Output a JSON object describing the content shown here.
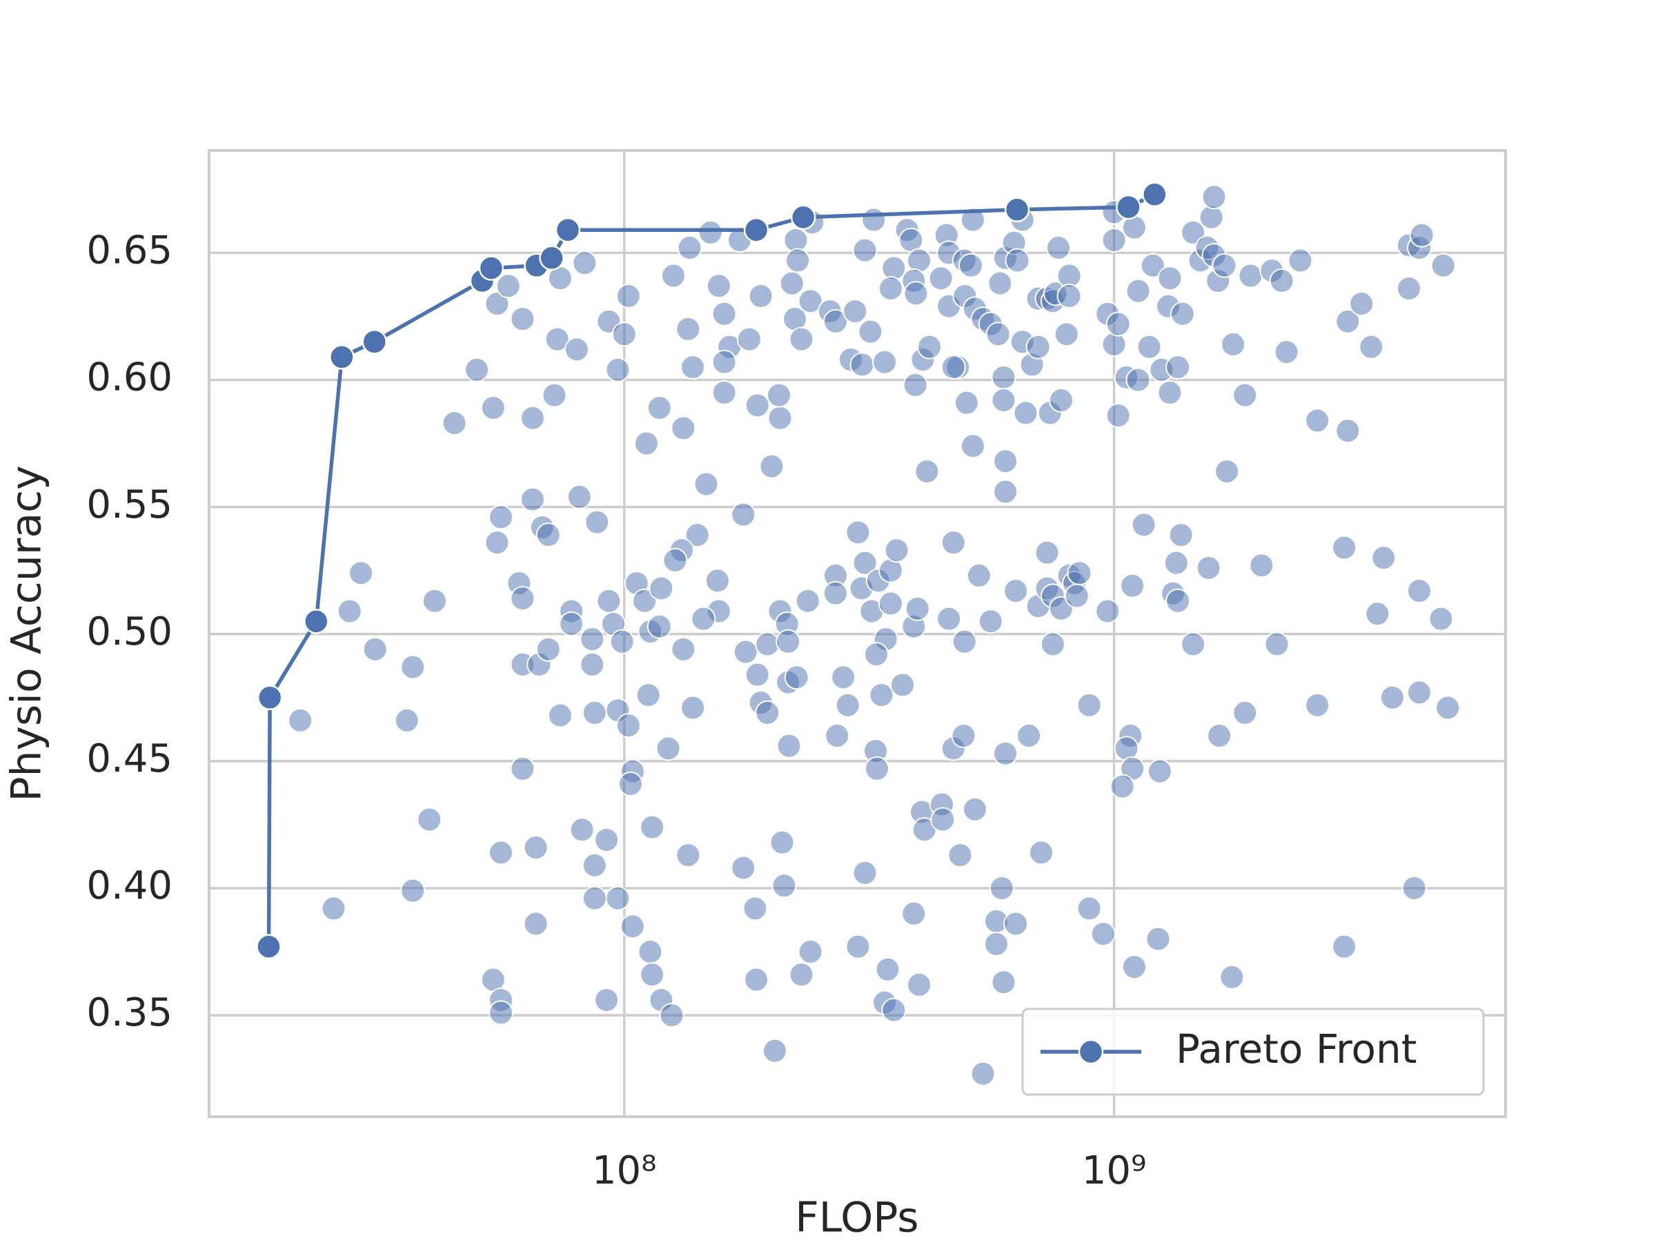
{
  "chart_data": {
    "type": "scatter",
    "x_label": "FLOPs",
    "y_label": "Physio Accuracy",
    "xscale": "log",
    "grid": true,
    "legend": "lower right",
    "xlim": [
      14200000,
      6300000000
    ],
    "ylim": [
      0.3101,
      0.6903
    ],
    "xticks": [
      {
        "value": 100000000,
        "label": "10⁸"
      },
      {
        "value": 1000000000,
        "label": "10⁹"
      }
    ],
    "yticks": [
      {
        "value": 0.35,
        "label": "0.35"
      },
      {
        "value": 0.4,
        "label": "0.40"
      },
      {
        "value": 0.45,
        "label": "0.45"
      },
      {
        "value": 0.5,
        "label": "0.50"
      },
      {
        "value": 0.55,
        "label": "0.55"
      },
      {
        "value": 0.6,
        "label": "0.60"
      },
      {
        "value": 0.65,
        "label": "0.65"
      }
    ],
    "series": [
      {
        "type": "scatter",
        "color": "#4c72b0",
        "x": [
          21800000.0,
          25500000.0,
          29000000.0,
          27500000.0,
          31000000.0,
          36000000.0,
          37000000.0,
          37000000.0,
          40000000.0,
          41000000.0,
          45000000.0,
          50000000.0,
          54000000.0,
          55000000.0,
          58000000.0,
          56000000.0,
          55000000.0,
          61000000.0,
          62000000.0,
          62000000.0,
          65000000.0,
          65000000.0,
          68000000.0,
          70000000.0,
          72000000.0,
          73000000.0,
          74000000.0,
          80000000.0,
          81000000.0,
          88000000.0,
          83000000.0,
          62000000.0,
          67000000.0,
          70000000.0,
          74000000.0,
          78000000.0,
          78000000.0,
          86000000.0,
          86000000.0,
          87000000.0,
          93000000.0,
          97000000.0,
          100000000.0,
          102000000.0,
          93000000.0,
          95000000.0,
          99000000.0,
          106000000.0,
          110000000.0,
          113000000.0,
          119000000.0,
          118000000.0,
          97000000.0,
          102000000.0,
          104000000.0,
          103000000.0,
          112000000.0,
          123000000.0,
          114000000.0,
          97000000.0,
          104000000.0,
          113000000.0,
          114000000.0,
          119000000.0,
          125000000.0,
          92000000.0,
          82000000.0,
          87000000.0,
          87000000.0,
          92000000.0,
          66000000.0,
          66000000.0,
          56000000.0,
          54000000.0,
          56000000.0,
          56000000.0,
          62000000.0,
          111000000.0,
          118000000.0,
          132000000.0,
          126000000.0,
          136000000.0,
          135000000.0,
          138000000.0,
          147000000.0,
          141000000.0,
          131000000.0,
          127000000.0,
          155000000.0,
          156000000.0,
          145000000.0,
          132000000.0,
          138000000.0,
          135000000.0,
          150000000.0,
          156000000.0,
          160000000.0,
          164000000.0,
          160000000.0,
          160000000.0,
          175000000.0,
          172000000.0,
          180000000.0,
          190000000.0,
          187000000.0,
          200000000.0,
          208000000.0,
          207000000.0,
          177000000.0,
          187000000.0,
          196000000.0,
          190000000.0,
          196000000.0,
          208000000.0,
          215000000.0,
          216000000.0,
          216000000.0,
          225000000.0,
          217000000.0,
          237000000.0,
          175000000.0,
          185000000.0,
          186000000.0,
          210000000.0,
          212000000.0,
          203000000.0,
          240000000.0,
          230000000.0,
          224000000.0,
          220000000.0,
          226000000.0,
          223000000.0,
          230000000.0,
          240000000.0,
          242000000.0,
          263000000.0,
          270000000.0,
          296000000.0,
          290000000.0,
          306000000.0,
          323000000.0,
          310000000.0,
          318000000.0,
          340000000.0,
          355000000.0,
          350000000.0,
          378000000.0,
          385000000.0,
          400000000.0,
          390000000.0,
          394000000.0,
          407000000.0,
          393000000.0,
          420000000.0,
          415000000.0,
          455000000.0,
          460000000.0,
          443000000.0,
          460000000.0,
          480000000.0,
          470000000.0,
          495000000.0,
          510000000.0,
          496000000.0,
          515000000.0,
          520000000.0,
          540000000.0,
          500000000.0,
          515000000.0,
          300000000.0,
          310000000.0,
          305000000.0,
          320000000.0,
          330000000.0,
          350000000.0,
          360000000.0,
          350000000.0,
          342000000.0,
          327000000.0,
          335000000.0,
          370000000.0,
          390000000.0,
          397000000.0,
          270000000.0,
          270000000.0,
          280000000.0,
          286000000.0,
          272000000.0,
          326000000.0,
          328000000.0,
          310000000.0,
          300000000.0,
          345000000.0,
          340000000.0,
          355000000.0,
          390000000.0,
          400000000.0,
          405000000.0,
          410000000.0,
          445000000.0,
          447000000.0,
          470000000.0,
          493000000.0,
          485000000.0,
          520000000.0,
          460000000.0,
          470000000.0,
          495000000.0,
          530000000.0,
          560000000.0,
          600000000.0,
          590000000.0,
          575000000.0,
          575000000.0,
          595000000.0,
          630000000.0,
          540000000.0,
          560000000.0,
          580000000.0,
          595000000.0,
          595000000.0,
          600000000.0,
          600000000.0,
          585000000.0,
          600000000.0,
          625000000.0,
          635000000.0,
          650000000.0,
          650000000.0,
          680000000.0,
          660000000.0,
          700000000.0,
          730000000.0,
          750000000.0,
          760000000.0,
          700000000.0,
          740000000.0,
          780000000.0,
          810000000.0,
          770000000.0,
          810000000.0,
          800000000.0,
          630000000.0,
          670000000.0,
          730000000.0,
          700000000.0,
          730000000.0,
          750000000.0,
          780000000.0,
          810000000.0,
          830000000.0,
          850000000.0,
          840000000.0,
          750000000.0,
          710000000.0,
          890000000.0,
          890000000.0,
          950000000.0,
          970000000.0,
          970000000.0,
          1000000000.0,
          1020000000.0,
          1020000000.0,
          1000000000.0,
          1000000000.0,
          1060000000.0,
          1120000000.0,
          1120000000.0,
          1100000000.0,
          1150000000.0,
          1090000000.0,
          1080000000.0,
          1060000000.0,
          1090000000.0,
          1040000000.0,
          1100000000.0,
          1200000000.0,
          1180000000.0,
          1250000000.0,
          1300000000.0,
          1290000000.0,
          1300000000.0,
          1350000000.0,
          1380000000.0,
          1240000000.0,
          1230000000.0,
          1320000000.0,
          1350000000.0,
          1340000000.0,
          1370000000.0,
          1450000000.0,
          1450000000.0,
          1500000000.0,
          1550000000.0,
          1600000000.0,
          1580000000.0,
          1600000000.0,
          1630000000.0,
          1680000000.0,
          1560000000.0,
          1640000000.0,
          1700000000.0,
          1750000000.0,
          1740000000.0,
          1850000000.0,
          1850000000.0,
          1900000000.0,
          2100000000.0,
          2000000000.0,
          2150000000.0,
          2200000000.0,
          2250000000.0,
          2400000000.0,
          2600000000.0,
          2600000000.0,
          2950000000.0,
          3000000000.0,
          3000000000.0,
          2950000000.0,
          3200000000.0,
          3350000000.0,
          3450000000.0,
          3550000000.0,
          3700000000.0,
          4000000000.0,
          4000000000.0,
          4200000000.0,
          4250000000.0,
          4200000000.0,
          4200000000.0,
          4100000000.0,
          4700000000.0,
          4650000000.0,
          4800000000.0
        ],
        "values": [
          0.466,
          0.392,
          0.524,
          0.509,
          0.494,
          0.466,
          0.487,
          0.399,
          0.427,
          0.513,
          0.583,
          0.604,
          0.589,
          0.63,
          0.637,
          0.546,
          0.536,
          0.52,
          0.514,
          0.624,
          0.553,
          0.585,
          0.542,
          0.539,
          0.594,
          0.616,
          0.64,
          0.612,
          0.554,
          0.544,
          0.646,
          0.488,
          0.488,
          0.494,
          0.468,
          0.509,
          0.504,
          0.498,
          0.488,
          0.469,
          0.623,
          0.604,
          0.618,
          0.633,
          0.513,
          0.504,
          0.497,
          0.52,
          0.513,
          0.501,
          0.518,
          0.503,
          0.47,
          0.464,
          0.446,
          0.441,
          0.476,
          0.455,
          0.424,
          0.396,
          0.385,
          0.375,
          0.366,
          0.356,
          0.35,
          0.356,
          0.423,
          0.409,
          0.396,
          0.419,
          0.416,
          0.386,
          0.414,
          0.364,
          0.356,
          0.351,
          0.447,
          0.575,
          0.589,
          0.581,
          0.641,
          0.652,
          0.62,
          0.605,
          0.559,
          0.539,
          0.533,
          0.529,
          0.521,
          0.509,
          0.506,
          0.494,
          0.471,
          0.413,
          0.658,
          0.637,
          0.626,
          0.613,
          0.607,
          0.595,
          0.547,
          0.655,
          0.616,
          0.633,
          0.59,
          0.566,
          0.585,
          0.594,
          0.493,
          0.484,
          0.496,
          0.473,
          0.469,
          0.509,
          0.504,
          0.497,
          0.481,
          0.483,
          0.456,
          0.513,
          0.408,
          0.392,
          0.364,
          0.418,
          0.401,
          0.336,
          0.375,
          0.366,
          0.655,
          0.638,
          0.647,
          0.624,
          0.616,
          0.631,
          0.662,
          0.627,
          0.623,
          0.627,
          0.608,
          0.606,
          0.663,
          0.651,
          0.619,
          0.607,
          0.644,
          0.636,
          0.659,
          0.655,
          0.647,
          0.639,
          0.634,
          0.608,
          0.598,
          0.613,
          0.564,
          0.657,
          0.65,
          0.64,
          0.629,
          0.605,
          0.605,
          0.647,
          0.645,
          0.633,
          0.663,
          0.628,
          0.624,
          0.591,
          0.574,
          0.54,
          0.528,
          0.518,
          0.509,
          0.521,
          0.525,
          0.533,
          0.512,
          0.498,
          0.492,
          0.476,
          0.48,
          0.503,
          0.51,
          0.523,
          0.516,
          0.483,
          0.472,
          0.46,
          0.454,
          0.447,
          0.406,
          0.377,
          0.368,
          0.355,
          0.352,
          0.39,
          0.362,
          0.43,
          0.423,
          0.433,
          0.427,
          0.455,
          0.46,
          0.413,
          0.431,
          0.506,
          0.536,
          0.497,
          0.523,
          0.505,
          0.453,
          0.4,
          0.387,
          0.378,
          0.363,
          0.386,
          0.327,
          0.622,
          0.618,
          0.601,
          0.592,
          0.568,
          0.556,
          0.638,
          0.648,
          0.654,
          0.647,
          0.663,
          0.615,
          0.606,
          0.587,
          0.632,
          0.632,
          0.631,
          0.634,
          0.613,
          0.587,
          0.592,
          0.641,
          0.652,
          0.633,
          0.618,
          0.517,
          0.46,
          0.532,
          0.511,
          0.518,
          0.515,
          0.51,
          0.523,
          0.52,
          0.524,
          0.515,
          0.496,
          0.414,
          0.472,
          0.392,
          0.382,
          0.509,
          0.626,
          0.614,
          0.622,
          0.586,
          0.666,
          0.655,
          0.601,
          0.6,
          0.635,
          0.66,
          0.543,
          0.519,
          0.46,
          0.455,
          0.447,
          0.44,
          0.369,
          0.645,
          0.613,
          0.604,
          0.64,
          0.629,
          0.595,
          0.605,
          0.626,
          0.446,
          0.38,
          0.516,
          0.513,
          0.528,
          0.539,
          0.496,
          0.658,
          0.647,
          0.652,
          0.649,
          0.664,
          0.672,
          0.639,
          0.645,
          0.526,
          0.46,
          0.564,
          0.614,
          0.365,
          0.469,
          0.594,
          0.641,
          0.643,
          0.527,
          0.496,
          0.639,
          0.611,
          0.647,
          0.584,
          0.472,
          0.534,
          0.623,
          0.58,
          0.377,
          0.63,
          0.613,
          0.508,
          0.53,
          0.475,
          0.653,
          0.636,
          0.652,
          0.657,
          0.517,
          0.477,
          0.4,
          0.645,
          0.506,
          0.471
        ]
      },
      {
        "name": "Pareto Front",
        "type": "line",
        "marker": true,
        "color": "#4c72b0",
        "x": [
          18800000.0,
          18900000.0,
          23500000.0,
          26500000.0,
          30900000.0,
          51300000.0,
          53500000.0,
          66200000.0,
          71100000.0,
          76700000.0,
          186000000.0,
          232000000.0,
          634000000.0,
          1070000000.0,
          1210000000.0
        ],
        "values": [
          0.377,
          0.475,
          0.505,
          0.609,
          0.615,
          0.639,
          0.644,
          0.645,
          0.648,
          0.659,
          0.659,
          0.664,
          0.667,
          0.668,
          0.673
        ]
      }
    ]
  }
}
